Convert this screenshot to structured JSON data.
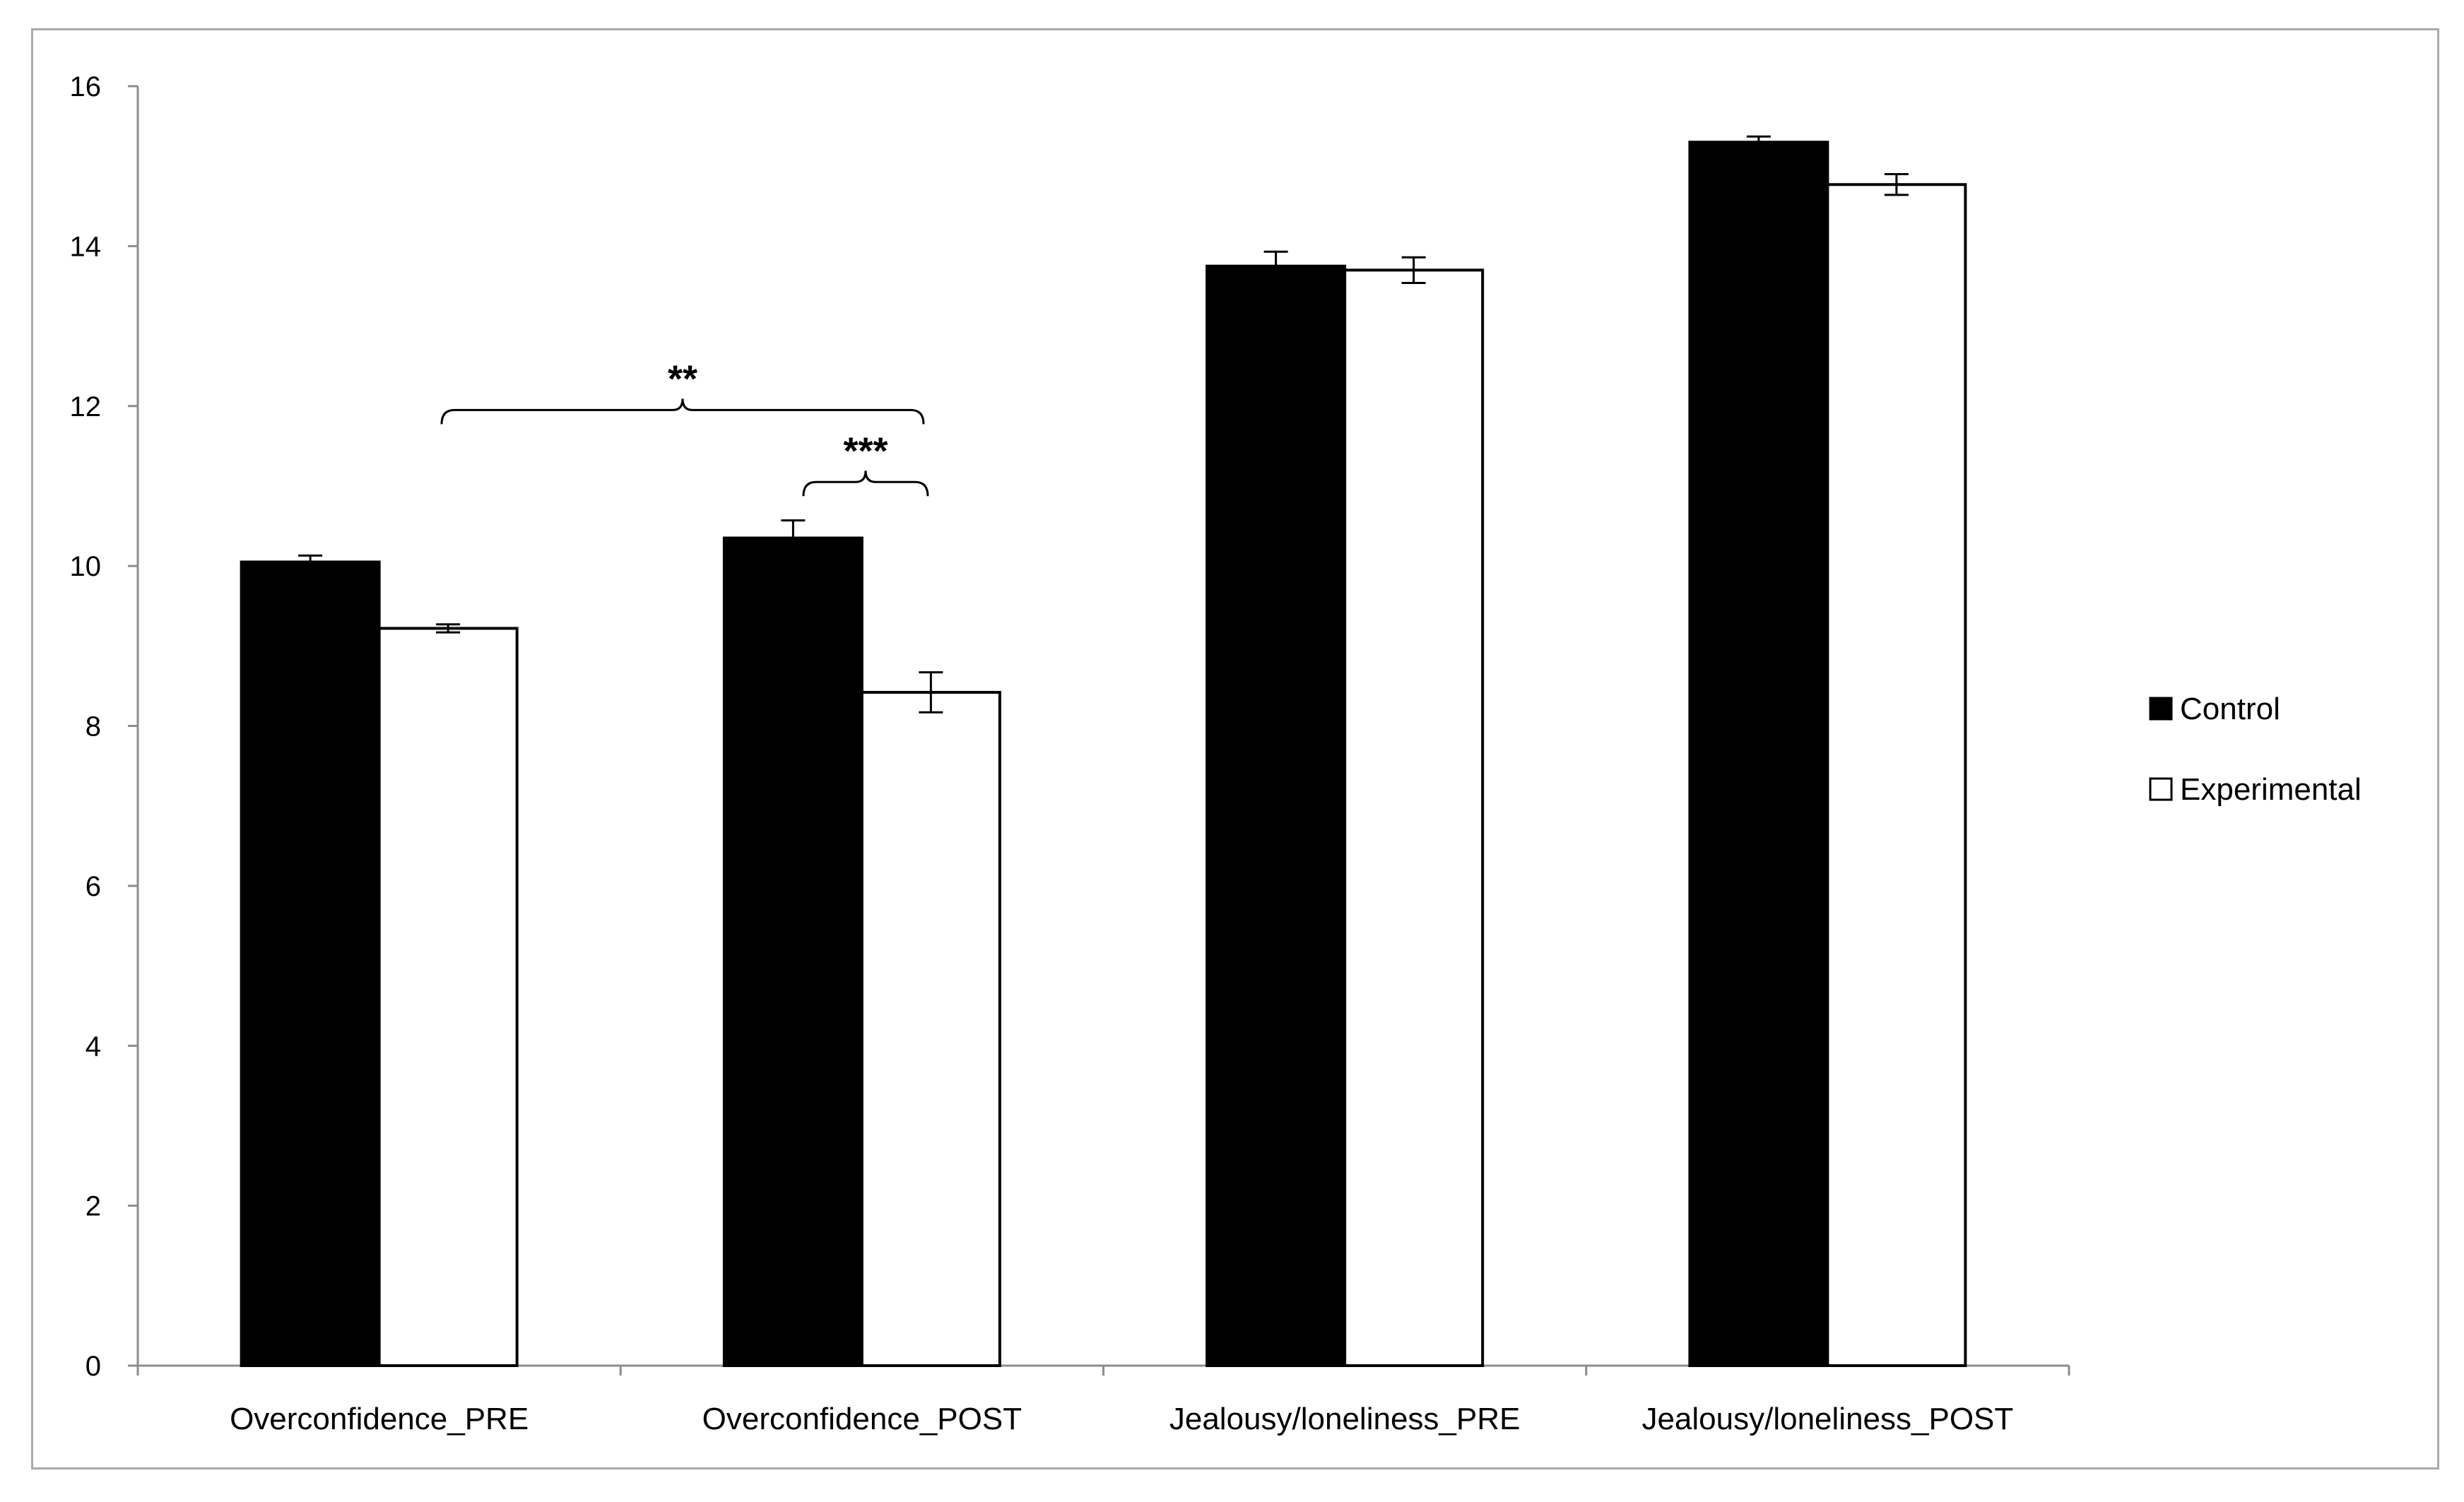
{
  "chart_data": {
    "type": "bar",
    "title": "",
    "xlabel": "",
    "ylabel": "",
    "ylim": [
      0,
      16
    ],
    "yticks": [
      0,
      2,
      4,
      6,
      8,
      10,
      12,
      14,
      16
    ],
    "grid": false,
    "legend_position": "right",
    "categories": [
      "Overconfidence_PRE",
      "Overconfidence_POST",
      "Jealousy/loneliness_PRE",
      "Jealousy/loneliness_POST"
    ],
    "series": [
      {
        "name": "Control",
        "color": "#000000",
        "values": [
          10.05,
          10.35,
          13.75,
          15.3
        ],
        "errors": [
          0.08,
          0.22,
          0.18,
          0.07
        ]
      },
      {
        "name": "Experimental",
        "color": "#ffffff",
        "values": [
          9.22,
          8.42,
          13.7,
          14.77
        ],
        "errors": [
          0.05,
          0.25,
          0.16,
          0.13
        ]
      }
    ],
    "annotations": [
      {
        "label": "**",
        "from": {
          "category": 0,
          "series": 1
        },
        "to": {
          "category": 1,
          "series": 1
        },
        "y": 11.95
      },
      {
        "label": "***",
        "from": {
          "category": 1,
          "series": 1
        },
        "to": {
          "category": 1,
          "series": 1
        },
        "y": 11.05
      }
    ]
  }
}
